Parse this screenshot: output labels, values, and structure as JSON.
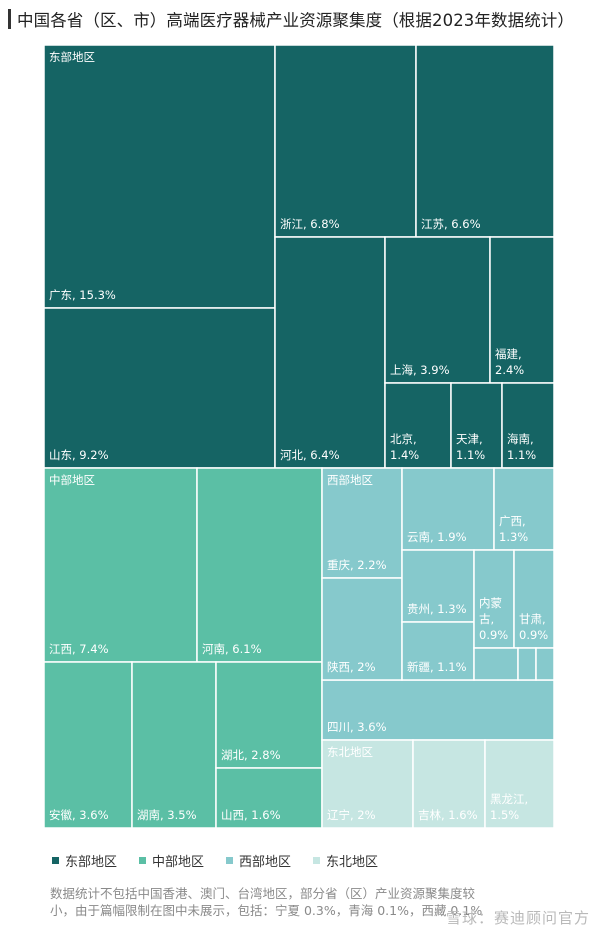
{
  "title": "中国各省（区、市）高端医疗器械产业资源聚集度（根据2023年数据统计）",
  "chart_data": {
    "type": "treemap",
    "unit": "%",
    "groups": [
      {
        "name": "东部地区",
        "color": "#156464",
        "items": [
          {
            "name": "广东",
            "value": 15.3
          },
          {
            "name": "山东",
            "value": 9.2
          },
          {
            "name": "浙江",
            "value": 6.8
          },
          {
            "name": "江苏",
            "value": 6.6
          },
          {
            "name": "河北",
            "value": 6.4
          },
          {
            "name": "上海",
            "value": 3.9
          },
          {
            "name": "福建",
            "value": 2.4
          },
          {
            "name": "北京",
            "value": 1.4
          },
          {
            "name": "天津",
            "value": 1.1
          },
          {
            "name": "海南",
            "value": 1.1
          }
        ]
      },
      {
        "name": "中部地区",
        "color": "#5bbfa5",
        "items": [
          {
            "name": "江西",
            "value": 7.4
          },
          {
            "name": "河南",
            "value": 6.1
          },
          {
            "name": "安徽",
            "value": 3.6
          },
          {
            "name": "湖南",
            "value": 3.5
          },
          {
            "name": "湖北",
            "value": 2.8
          },
          {
            "name": "山西",
            "value": 1.6
          }
        ]
      },
      {
        "name": "西部地区",
        "color": "#86c9cc",
        "items": [
          {
            "name": "四川",
            "value": 3.6
          },
          {
            "name": "重庆",
            "value": 2.2
          },
          {
            "name": "陕西",
            "value": 2.0
          },
          {
            "name": "云南",
            "value": 1.9
          },
          {
            "name": "广西",
            "value": 1.3
          },
          {
            "name": "贵州",
            "value": 1.3
          },
          {
            "name": "新疆",
            "value": 1.1
          },
          {
            "name": "内蒙古",
            "value": 0.9
          },
          {
            "name": "甘肃",
            "value": 0.9
          }
        ]
      },
      {
        "name": "东北地区",
        "color": "#c6e6e2",
        "items": [
          {
            "name": "辽宁",
            "value": 2.0
          },
          {
            "name": "吉林",
            "value": 1.6
          },
          {
            "name": "黑龙江",
            "value": 1.5
          }
        ]
      }
    ],
    "legend": [
      "东部地区",
      "中部地区",
      "西部地区",
      "东北地区"
    ],
    "legend_position": "bottom-left"
  },
  "footnote": "数据统计不包括中国香港、澳门、台湾地区，部分省（区）产业资源聚集度较小，由于篇幅限制在图中未展示，包括：宁夏 0.3%，青海 0.1%，西藏 0.1%",
  "watermark": "雪球：赛迪顾问官方"
}
